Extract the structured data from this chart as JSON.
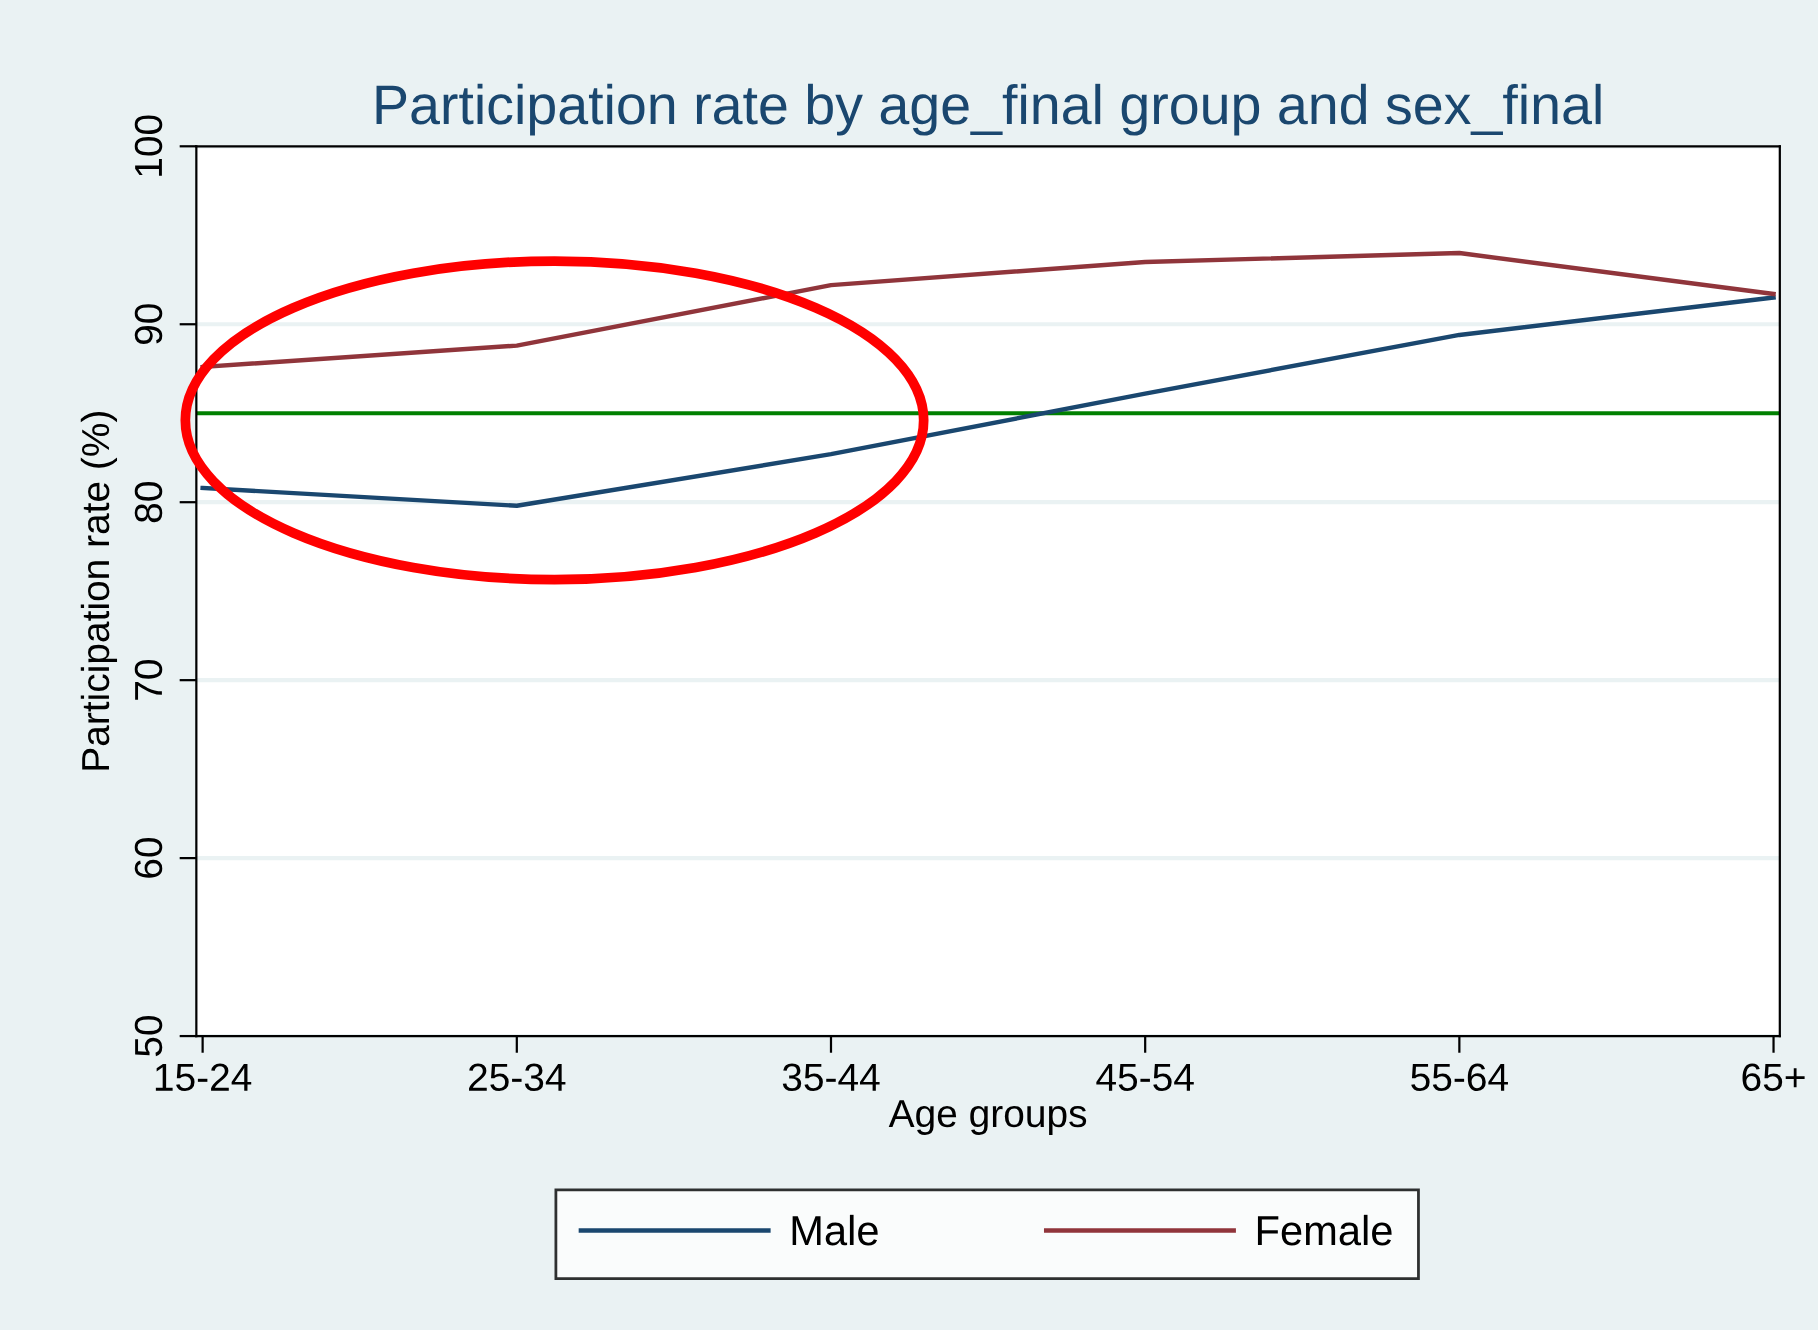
{
  "chart_data": {
    "type": "line",
    "title": "Participation rate by age_final group and sex_final",
    "xlabel": "Age groups",
    "ylabel": "Participation rate (%)",
    "categories": [
      "15-24",
      "25-34",
      "35-44",
      "45-54",
      "55-64",
      "65+"
    ],
    "series": [
      {
        "name": "Male",
        "color": "#1a476f",
        "values": [
          80.8,
          79.8,
          82.7,
          86.1,
          89.4,
          91.5
        ]
      },
      {
        "name": "Female",
        "color": "#90353b",
        "values": [
          87.6,
          88.8,
          92.2,
          93.5,
          94.0,
          91.7
        ]
      }
    ],
    "ylim": [
      50,
      100
    ],
    "yticks": [
      50,
      60,
      70,
      80,
      90,
      100
    ],
    "grid": "y",
    "legend": "bottom",
    "marker": "none",
    "line_style": "solid",
    "ref_lines": [
      {
        "axis": "y",
        "value": 85,
        "color": "#008000"
      }
    ]
  }
}
